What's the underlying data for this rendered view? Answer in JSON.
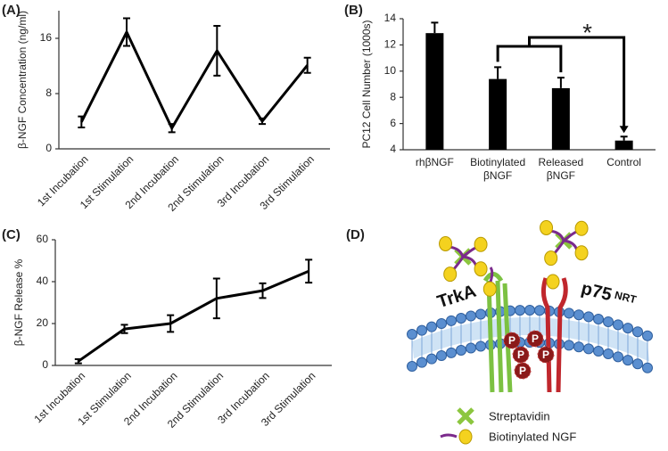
{
  "chart_data": [
    {
      "type": "line",
      "panel": "(A)",
      "y_label": "β-NGF Concentration (ng/ml)",
      "categories": [
        "1st Incubation",
        "1st Stimulation",
        "2nd Incubation",
        "2nd Stimulation",
        "3rd Incubation",
        "3rd Stimulation"
      ],
      "values": [
        3.9,
        16.9,
        3.0,
        14.2,
        4.0,
        12.1
      ],
      "errors": [
        0.8,
        2.0,
        0.6,
        3.6,
        0.4,
        1.1
      ],
      "color": "#000000",
      "ylim": [
        0,
        20
      ],
      "yticks": [
        0,
        8,
        16
      ]
    },
    {
      "type": "bar",
      "panel": "(B)",
      "y_label": "PC12 Cell Number (1000s)",
      "categories": [
        "rhβNGF",
        "Biotinylated\nβNGF",
        "Released\nβNGF",
        "Control"
      ],
      "values": [
        12.9,
        9.4,
        8.7,
        4.7
      ],
      "errors": [
        0.8,
        0.9,
        0.8,
        0.3
      ],
      "color": "#000000",
      "ylim": [
        4,
        14
      ],
      "yticks": [
        4,
        6,
        8,
        10,
        12,
        14
      ],
      "annotation": "*"
    },
    {
      "type": "line",
      "panel": "(C)",
      "y_label": "β-NGF Release %",
      "categories": [
        "1st Incubation",
        "1st Stimulation",
        "2nd Incubation",
        "2nd Stimulation",
        "3rd Incubation",
        "3rd Stimulation"
      ],
      "values": [
        2,
        17.4,
        20,
        32,
        35.7,
        45
      ],
      "errors": [
        1,
        2,
        4,
        9.5,
        3.5,
        5.5
      ],
      "color": "#000000",
      "ylim": [
        0,
        60
      ],
      "yticks": [
        0,
        20,
        40,
        60
      ]
    }
  ],
  "diagram": {
    "panel": "(D)",
    "receptor_1": "TrkA",
    "receptor_2": "p75",
    "receptor_2_superscript": "NRT",
    "phosphates": [
      "P",
      "P",
      "P",
      "P",
      "P"
    ],
    "legend": [
      "Streptavidin",
      "Biotinylated NGF"
    ]
  }
}
